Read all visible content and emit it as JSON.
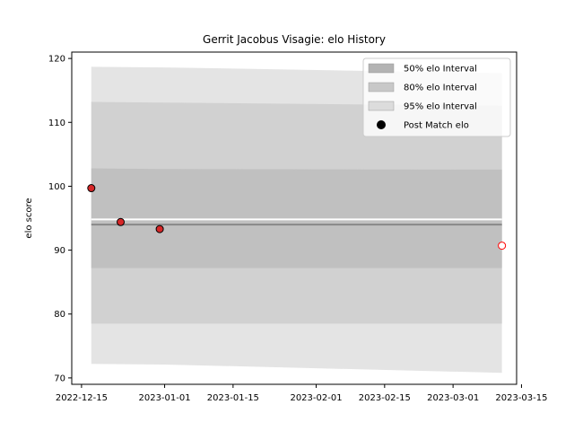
{
  "chart_data": {
    "type": "line",
    "title": "Gerrit Jacobus Visagie: elo History",
    "xlabel": "",
    "ylabel": "elo score",
    "xlim": [
      "2022-12-13",
      "2023-03-14"
    ],
    "ylim": [
      69,
      121
    ],
    "x_ticks": [
      "2022-12-15",
      "2023-01-01",
      "2023-01-15",
      "2023-02-01",
      "2023-02-15",
      "2023-03-01",
      "2023-03-15"
    ],
    "y_ticks": [
      70,
      80,
      90,
      100,
      110,
      120
    ],
    "grid": false,
    "legend_position": "top-right",
    "legend": [
      {
        "label": "50% elo Interval",
        "color": "#b3b3b3",
        "kind": "patch"
      },
      {
        "label": "80% elo Interval",
        "color": "#c8c8c8",
        "kind": "patch"
      },
      {
        "label": "95% elo Interval",
        "color": "#dcdcdc",
        "kind": "patch"
      },
      {
        "label": "Post Match elo",
        "color": "#000000",
        "kind": "marker"
      }
    ],
    "intervals": [
      {
        "name": "95% elo Interval",
        "color": "#e4e4e4",
        "x": [
          "2022-12-17",
          "2023-01-01",
          "2023-03-11"
        ],
        "lower": [
          72.2,
          72.1,
          70.8
        ],
        "upper": [
          118.7,
          118.6,
          117.7
        ]
      },
      {
        "name": "80% elo Interval",
        "color": "#d1d1d1",
        "x": [
          "2022-12-17",
          "2023-01-01",
          "2023-03-11"
        ],
        "lower": [
          78.5,
          78.5,
          78.5
        ],
        "upper": [
          113.2,
          113.1,
          112.6
        ]
      },
      {
        "name": "50% elo Interval",
        "color": "#c0c0c0",
        "x": [
          "2022-12-17",
          "2023-01-01",
          "2023-03-11"
        ],
        "lower": [
          87.2,
          87.2,
          87.2
        ],
        "upper": [
          102.8,
          102.7,
          102.6
        ]
      }
    ],
    "mean_line": {
      "x": [
        "2022-12-17",
        "2023-03-11"
      ],
      "y": [
        94.0,
        94.0
      ]
    },
    "highlight_line": {
      "x": [
        "2022-12-17",
        "2023-03-11"
      ],
      "y": [
        94.8,
        94.8
      ]
    },
    "points": [
      {
        "x": "2022-12-17",
        "y": 99.7,
        "fill": "#d62728",
        "edge": "#000000"
      },
      {
        "x": "2022-12-23",
        "y": 94.4,
        "fill": "#d62728",
        "edge": "#000000"
      },
      {
        "x": "2022-12-31",
        "y": 93.3,
        "fill": "#d62728",
        "edge": "#000000"
      },
      {
        "x": "2023-03-11",
        "y": 90.7,
        "fill": "#ffffff",
        "edge": "#ff0000"
      }
    ]
  }
}
